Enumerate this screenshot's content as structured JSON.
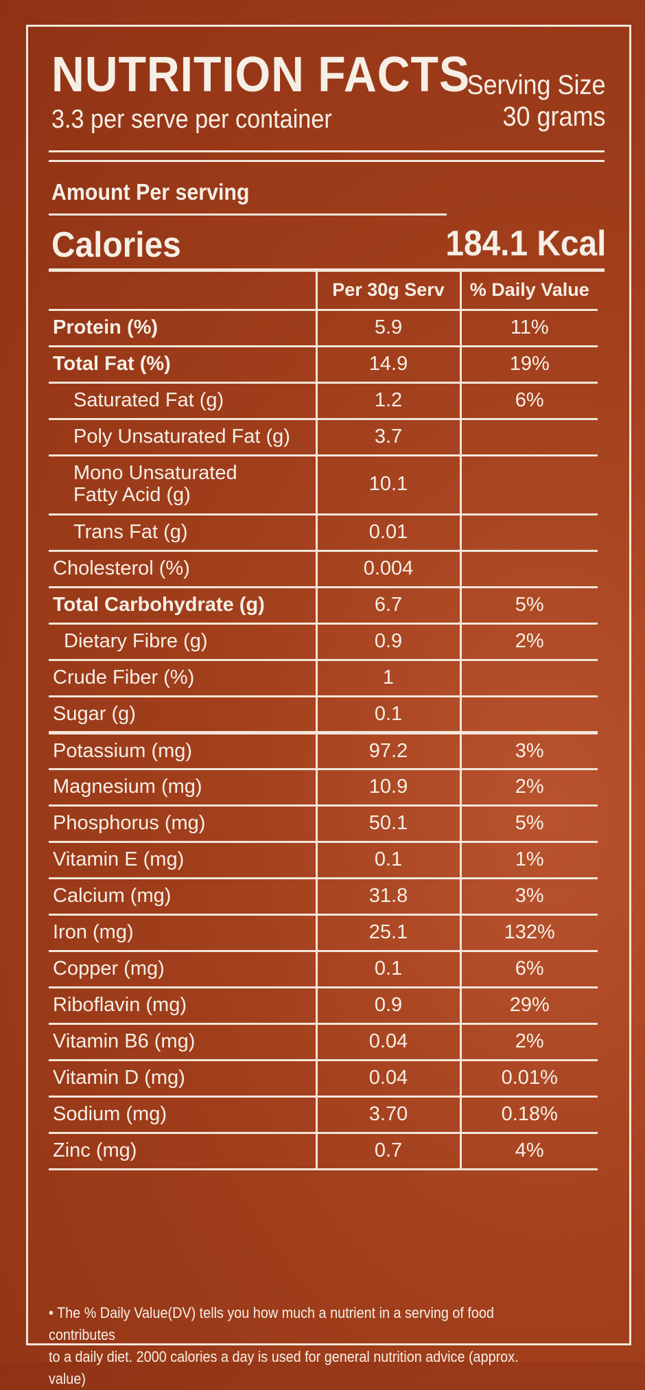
{
  "header": {
    "title": "NUTRITION FACTS",
    "subtitle": "3.3 per serve per container",
    "serving_size_label": "Serving Size",
    "serving_size_value": "30 grams"
  },
  "amount_label": "Amount Per serving",
  "calories": {
    "label": "Calories",
    "value": "184.1 Kcal"
  },
  "table": {
    "col_serving": "Per 30g Serv",
    "col_dv": "% Daily Value",
    "rows": [
      {
        "name": "Protein (%)",
        "serv": "5.9",
        "dv": "11%"
      },
      {
        "name": "Total Fat (%)",
        "serv": "14.9",
        "dv": "19%"
      },
      {
        "name": "Saturated Fat (g)",
        "serv": "1.2",
        "dv": "6%"
      },
      {
        "name": "Poly Unsaturated Fat (g)",
        "serv": "3.7",
        "dv": ""
      },
      {
        "name": "Mono Unsaturated",
        "name2": "Fatty Acid (g)",
        "serv": "10.1",
        "dv": ""
      },
      {
        "name": "Trans Fat (g)",
        "serv": "0.01",
        "dv": ""
      },
      {
        "name": "Cholesterol (%)",
        "serv": "0.004",
        "dv": ""
      },
      {
        "name": "Total Carbohydrate (g)",
        "serv": "6.7",
        "dv": "5%"
      },
      {
        "name": "Dietary Fibre (g)",
        "serv": "0.9",
        "dv": "2%"
      },
      {
        "name": "Crude Fiber (%)",
        "serv": "1",
        "dv": ""
      },
      {
        "name": "Sugar (g)",
        "serv": "0.1",
        "dv": ""
      },
      {
        "name": "Potassium (mg)",
        "serv": "97.2",
        "dv": "3%"
      },
      {
        "name": "Magnesium (mg)",
        "serv": "10.9",
        "dv": "2%"
      },
      {
        "name": "Phosphorus (mg)",
        "serv": "50.1",
        "dv": "5%"
      },
      {
        "name": "Vitamin E (mg)",
        "serv": "0.1",
        "dv": "1%"
      },
      {
        "name": "Calcium (mg)",
        "serv": "31.8",
        "dv": "3%"
      },
      {
        "name": "Iron (mg)",
        "serv": "25.1",
        "dv": "132%"
      },
      {
        "name": "Copper (mg)",
        "serv": "0.1",
        "dv": "6%"
      },
      {
        "name": "Riboflavin (mg)",
        "serv": "0.9",
        "dv": "29%"
      },
      {
        "name": "Vitamin B6 (mg)",
        "serv": "0.04",
        "dv": "2%"
      },
      {
        "name": "Vitamin D (mg)",
        "serv": "0.04",
        "dv": "0.01%"
      },
      {
        "name": "Sodium (mg)",
        "serv": "3.70",
        "dv": "0.18%"
      },
      {
        "name": "Zinc (mg)",
        "serv": "0.7",
        "dv": "4%"
      }
    ]
  },
  "footnote": {
    "line1": "• The % Daily Value(DV) tells you how much a nutrient in a serving of food contributes",
    "line2": "to a daily diet. 2000 calories a day is used for general nutrition advice (approx. value)"
  },
  "colors": {
    "background": "#9e3a1a",
    "text_and_rules": "#f3e6da"
  }
}
